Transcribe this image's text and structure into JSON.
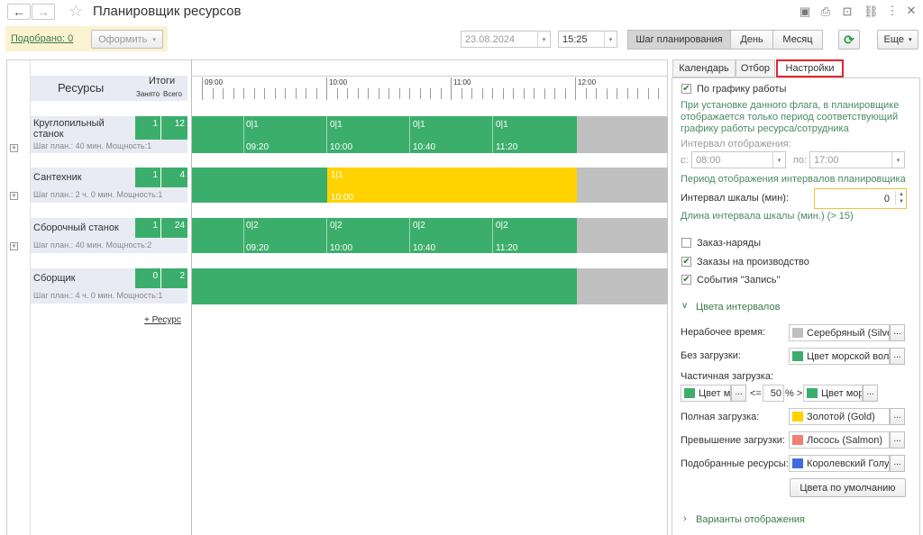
{
  "window": {
    "title": "Планировщик ресурсов"
  },
  "toolbar": {
    "selected_label": "Подобрано: 0",
    "form_button": "Оформить",
    "date_value": "23.08.2024",
    "time_value": "15:25",
    "step_button": "Шаг планирования",
    "day_button": "День",
    "month_button": "Месяц",
    "more_button": "Еще"
  },
  "grid": {
    "resources_header": "Ресурсы",
    "totals_header": "Итоги",
    "busy_header": "Занято",
    "total_header": "Всего",
    "add_resource": "+ Ресурс",
    "time_labels": [
      "09:00",
      "10:00",
      "11:00",
      "12:00"
    ],
    "rows": [
      {
        "name": "Круглопильный станок",
        "sub": "Шаг план.: 40 мин. Мощность:1",
        "busy": "1",
        "total": "12",
        "bars": [
          {
            "top": "0|1",
            "bottom": "09:20"
          },
          {
            "top": "0|1",
            "bottom": "10:00"
          },
          {
            "top": "0|1",
            "bottom": "10:40"
          },
          {
            "top": "0|1",
            "bottom": "11:20"
          }
        ]
      },
      {
        "name": "Сантехник",
        "sub": "Шаг план.: 2 ч. 0 мин. Мощность:1",
        "busy": "1",
        "total": "4",
        "bars": [
          {
            "top": "1|1",
            "bottom": "10:00"
          }
        ]
      },
      {
        "name": "Сборочный станок",
        "sub": "Шаг план.: 40 мин. Мощность:2",
        "busy": "1",
        "total": "24",
        "bars": [
          {
            "top": "0|2",
            "bottom": "09:20"
          },
          {
            "top": "0|2",
            "bottom": "10:00"
          },
          {
            "top": "0|2",
            "bottom": "10:40"
          },
          {
            "top": "0|2",
            "bottom": "11:20"
          }
        ]
      },
      {
        "name": "Сборщик",
        "sub": "Шаг план.: 4 ч. 0 мин. Мощность:1",
        "busy": "0",
        "total": "2",
        "bars": []
      }
    ]
  },
  "panel": {
    "tabs": [
      "Календарь",
      "Отбор",
      "Настройки"
    ],
    "by_schedule": "По графику работы",
    "by_schedule_hint": "При установке данного флага, в планировщике отображается только период соответствующий графику работы ресурса/сотрудника",
    "display_interval": "Интервал отображения:",
    "from_label": "с:",
    "from_value": "08:00",
    "to_label": "по:",
    "to_value": "17:00",
    "display_period_hint": "Период отображения интервалов планировщика",
    "scale_interval_label": "Интервал шкалы (мин):",
    "scale_interval_value": "0",
    "scale_interval_hint": "Длина интервала шкалы (мин.) (> 15)",
    "work_orders": "Заказ-наряды",
    "production_orders": "Заказы на производство",
    "record_events": "События \"Запись\"",
    "interval_colors": "Цвета интервалов",
    "nonworking_label": "Нерабочее время:",
    "nonworking_value": "Серебряный (Silve",
    "noload_label": "Без загрузки:",
    "noload_value": "Цвет морской вол",
    "partial_label": "Частичная загрузка:",
    "partial_left": "Цвет м",
    "partial_le": "<=",
    "partial_percent": "50",
    "partial_pct_sign": "% >",
    "partial_right": "Цвет мор",
    "full_label": "Полная загрузка:",
    "full_value": "Золотой (Gold)",
    "overload_label": "Превышение загрузки:",
    "overload_value": "Лосось (Salmon)",
    "selected_label": "Подобранные ресурсы:",
    "selected_value": "Королевский Голу",
    "default_colors": "Цвета по умолчанию",
    "display_variants": "Варианты отображения",
    "dots": "..."
  },
  "colors": {
    "green": "#3cae6c",
    "gold": "#ffd200",
    "silver": "#c0c0c0",
    "salmon": "#f08070",
    "royal_blue": "#4169e1",
    "accent_red": "#e3252b"
  }
}
